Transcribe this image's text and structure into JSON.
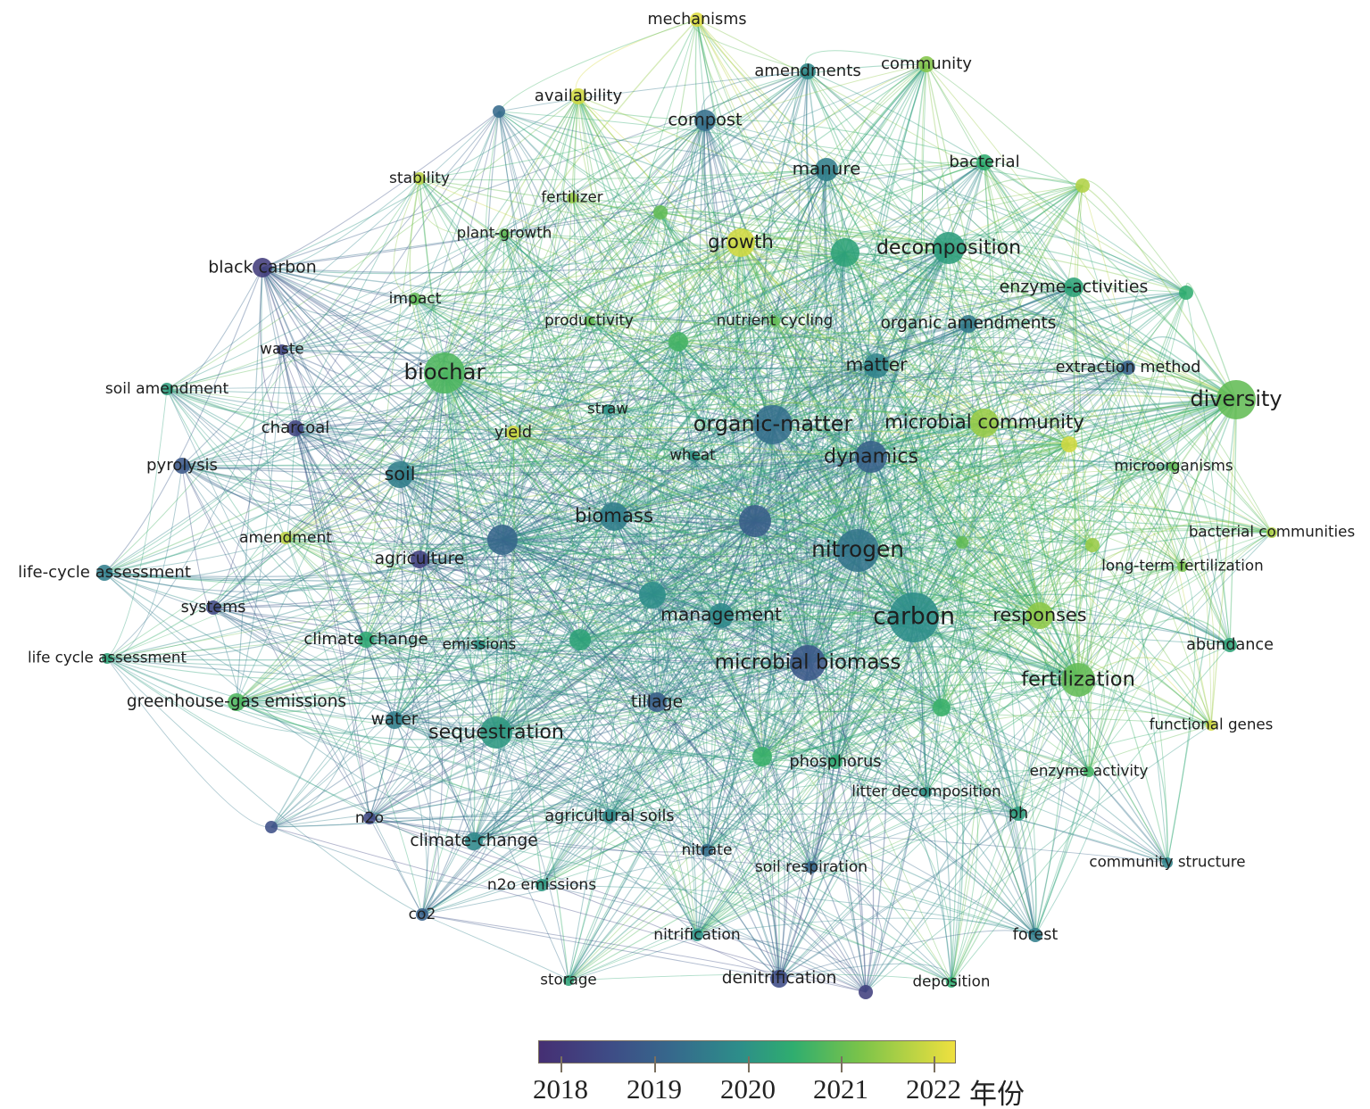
{
  "legend": {
    "ticks": [
      "2018",
      "2019",
      "2020",
      "2021",
      "2022"
    ],
    "unit": "年份",
    "color_scale": [
      "#452f73",
      "#3e4c86",
      "#36698c",
      "#2d8d8a",
      "#2fad6f",
      "#79c34a",
      "#efe03f"
    ],
    "range": [
      2017.75,
      2022.25
    ]
  },
  "nodes": [
    {
      "label": "mechanisms",
      "year": 2022.1
    },
    {
      "label": "amendments",
      "year": 2019.8
    },
    {
      "label": "community",
      "year": 2021.3
    },
    {
      "label": "availability",
      "year": 2022.0
    },
    {
      "label": "",
      "year": 2019.2
    },
    {
      "label": "compost",
      "year": 2019.3
    },
    {
      "label": "stability",
      "year": 2021.8
    },
    {
      "label": "fertilizer",
      "year": 2021.5
    },
    {
      "label": "manure",
      "year": 2019.6
    },
    {
      "label": "bacterial",
      "year": 2020.5
    },
    {
      "label": "",
      "year": 2021.7
    },
    {
      "label": "",
      "year": 2021.0
    },
    {
      "label": "plant-growth",
      "year": 2021.0
    },
    {
      "label": "growth",
      "year": 2022.0
    },
    {
      "label": "decomposition",
      "year": 2020.2
    },
    {
      "label": "",
      "year": 2020.3
    },
    {
      "label": "black carbon",
      "year": 2018.1
    },
    {
      "label": "enzyme-activities",
      "year": 2020.3
    },
    {
      "label": "",
      "year": 2020.5
    },
    {
      "label": "impact",
      "year": 2021.0
    },
    {
      "label": "productivity",
      "year": 2021.0
    },
    {
      "label": "nutrient cycling",
      "year": 2021.0
    },
    {
      "label": "",
      "year": 2020.7
    },
    {
      "label": "organic amendments",
      "year": 2019.5
    },
    {
      "label": "waste",
      "year": 2018.3
    },
    {
      "label": "matter",
      "year": 2019.7
    },
    {
      "label": "extraction method",
      "year": 2019.0
    },
    {
      "label": "biochar",
      "year": 2020.8
    },
    {
      "label": "diversity",
      "year": 2021.0
    },
    {
      "label": "soil amendment",
      "year": 2020.2
    },
    {
      "label": "straw",
      "year": 2020.0
    },
    {
      "label": "organic-matter",
      "year": 2019.3
    },
    {
      "label": "microbial community",
      "year": 2021.5
    },
    {
      "label": "charcoal",
      "year": 2018.3
    },
    {
      "label": "yield",
      "year": 2022.0
    },
    {
      "label": "",
      "year": 2022.0
    },
    {
      "label": "wheat",
      "year": 2020.0
    },
    {
      "label": "dynamics",
      "year": 2019.0
    },
    {
      "label": "pyrolysis",
      "year": 2018.8
    },
    {
      "label": "soil",
      "year": 2019.6
    },
    {
      "label": "microorganisms",
      "year": 2021.0
    },
    {
      "label": "biomass",
      "year": 2019.6
    },
    {
      "label": "",
      "year": 2018.9
    },
    {
      "label": "",
      "year": 2019.1
    },
    {
      "label": "amendment",
      "year": 2021.8
    },
    {
      "label": "bacterial communities",
      "year": 2021.7
    },
    {
      "label": "nitrogen",
      "year": 2019.4
    },
    {
      "label": "agriculture",
      "year": 2018.2
    },
    {
      "label": "",
      "year": 2021.0
    },
    {
      "label": "",
      "year": 2021.5
    },
    {
      "label": "long-term fertilization",
      "year": 2021.2
    },
    {
      "label": "life-cycle assessment",
      "year": 2019.6
    },
    {
      "label": "",
      "year": 2019.9
    },
    {
      "label": "systems",
      "year": 2018.4
    },
    {
      "label": "management",
      "year": 2019.8
    },
    {
      "label": "carbon",
      "year": 2019.9
    },
    {
      "label": "responses",
      "year": 2021.4
    },
    {
      "label": "climate change",
      "year": 2020.4
    },
    {
      "label": "emissions",
      "year": 2020.0
    },
    {
      "label": "",
      "year": 2020.3
    },
    {
      "label": "abundance",
      "year": 2020.3
    },
    {
      "label": "life cycle assessment",
      "year": 2020.3
    },
    {
      "label": "microbial biomass",
      "year": 2018.8
    },
    {
      "label": "fertilization",
      "year": 2021.0
    },
    {
      "label": "greenhouse-gas emissions",
      "year": 2020.8
    },
    {
      "label": "tillage",
      "year": 2018.9
    },
    {
      "label": "water",
      "year": 2019.6
    },
    {
      "label": "sequestration",
      "year": 2020.1
    },
    {
      "label": "",
      "year": 2020.6
    },
    {
      "label": "functional genes",
      "year": 2022.0
    },
    {
      "label": "",
      "year": 2020.6
    },
    {
      "label": "phosphorus",
      "year": 2020.4
    },
    {
      "label": "enzyme activity",
      "year": 2020.7
    },
    {
      "label": "litter decomposition",
      "year": 2020.0
    },
    {
      "label": "agricultural soils",
      "year": 2019.8
    },
    {
      "label": "ph",
      "year": 2020.2
    },
    {
      "label": "n2o",
      "year": 2018.4
    },
    {
      "label": "",
      "year": 2018.6
    },
    {
      "label": "climate-change",
      "year": 2019.8
    },
    {
      "label": "nitrate",
      "year": 2019.3
    },
    {
      "label": "soil respiration",
      "year": 2019.1
    },
    {
      "label": "community structure",
      "year": 2019.7
    },
    {
      "label": "n2o emissions",
      "year": 2020.1
    },
    {
      "label": "co2",
      "year": 2019.0
    },
    {
      "label": "nitrification",
      "year": 2020.0
    },
    {
      "label": "forest",
      "year": 2019.6
    },
    {
      "label": "storage",
      "year": 2020.3
    },
    {
      "label": "denitrification",
      "year": 2018.5
    },
    {
      "label": "",
      "year": 2018.2
    },
    {
      "label": "deposition",
      "year": 2020.5
    }
  ]
}
